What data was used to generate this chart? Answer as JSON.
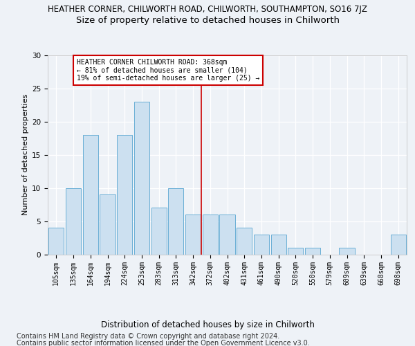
{
  "title1": "HEATHER CORNER, CHILWORTH ROAD, CHILWORTH, SOUTHAMPTON, SO16 7JZ",
  "title2": "Size of property relative to detached houses in Chilworth",
  "xlabel": "Distribution of detached houses by size in Chilworth",
  "ylabel": "Number of detached properties",
  "categories": [
    "105sqm",
    "135sqm",
    "164sqm",
    "194sqm",
    "224sqm",
    "253sqm",
    "283sqm",
    "313sqm",
    "342sqm",
    "372sqm",
    "402sqm",
    "431sqm",
    "461sqm",
    "490sqm",
    "520sqm",
    "550sqm",
    "579sqm",
    "609sqm",
    "639sqm",
    "668sqm",
    "698sqm"
  ],
  "values": [
    4,
    10,
    18,
    9,
    18,
    23,
    7,
    10,
    6,
    6,
    6,
    4,
    3,
    3,
    1,
    1,
    0,
    1,
    0,
    0,
    3
  ],
  "bar_color": "#cce0f0",
  "bar_edgecolor": "#6aafd6",
  "vline_x": 8.5,
  "vline_color": "#cc0000",
  "annotation_text": "HEATHER CORNER CHILWORTH ROAD: 368sqm\n← 81% of detached houses are smaller (104)\n19% of semi-detached houses are larger (25) →",
  "annotation_box_facecolor": "#ffffff",
  "annotation_box_edgecolor": "#cc0000",
  "ylim": [
    0,
    30
  ],
  "yticks": [
    0,
    5,
    10,
    15,
    20,
    25,
    30
  ],
  "footer1": "Contains HM Land Registry data © Crown copyright and database right 2024.",
  "footer2": "Contains public sector information licensed under the Open Government Licence v3.0.",
  "bg_color": "#eef2f7",
  "title1_fontsize": 8.5,
  "title2_fontsize": 9.5,
  "tick_fontsize": 7,
  "ylabel_fontsize": 8,
  "xlabel_fontsize": 8.5,
  "annot_fontsize": 7,
  "footer_fontsize": 7
}
